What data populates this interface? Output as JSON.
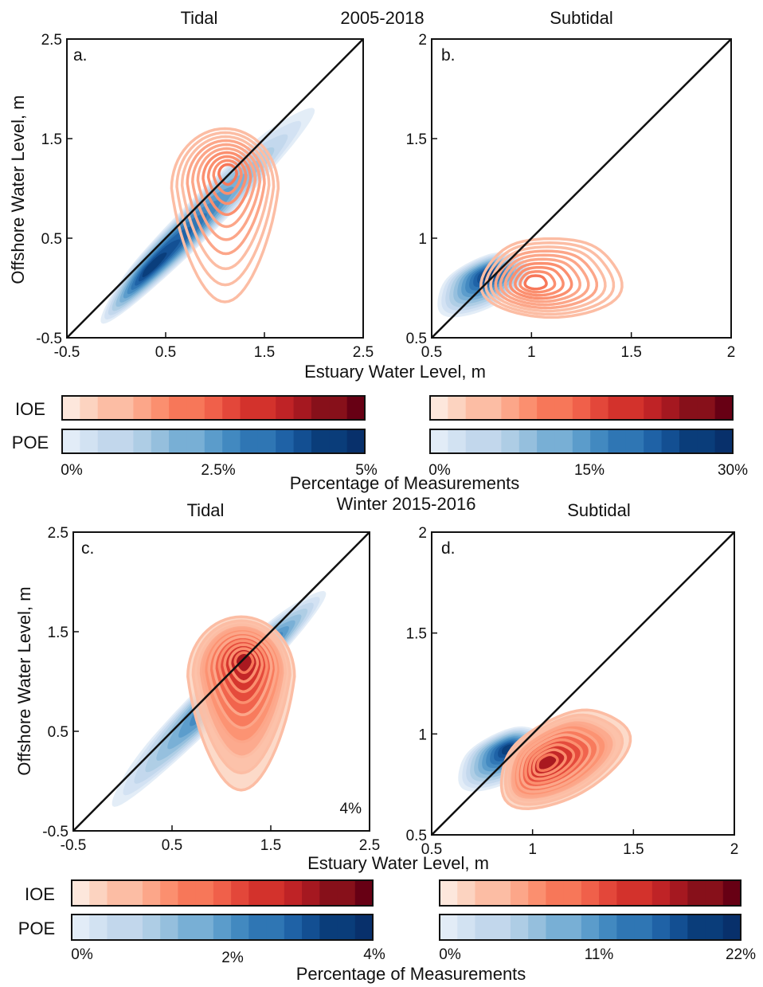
{
  "figure": {
    "top_period": "2005-2018",
    "bottom_period": "Winter 2015-2016"
  },
  "chart_data": [
    {
      "panel": "a.",
      "type": "contour",
      "title": "Tidal",
      "xlabel": "Estuary Water Level, m",
      "ylabel": "Offshore Water Level, m",
      "xlim": [
        -0.5,
        2.5
      ],
      "ylim": [
        -0.5,
        2.5
      ],
      "xticks": [
        "-0.5",
        "0.5",
        "1.5",
        "2.5"
      ],
      "yticks": [
        "-0.5",
        "0.5",
        "1.5",
        "2.5"
      ],
      "one_to_one_line": true,
      "series": [
        {
          "name": "POE",
          "fill": "filled",
          "center": [
            0.9,
            0.75
          ],
          "spread_along": 1.55,
          "spread_across": 0.12,
          "peak": [
            0.45,
            0.45
          ]
        },
        {
          "name": "IOE",
          "fill": "lines",
          "center": [
            1.1,
            1.0
          ],
          "spread_x": 0.45,
          "spread_y": 0.85
        }
      ]
    },
    {
      "panel": "b.",
      "type": "contour",
      "title": "Subtidal",
      "xlim": [
        0.5,
        2
      ],
      "ylim": [
        0.5,
        2
      ],
      "xticks": [
        "0.5",
        "1",
        "1.5",
        "2"
      ],
      "yticks": [
        "0.5",
        "1",
        "1.5",
        "2"
      ],
      "one_to_one_line": true,
      "series": [
        {
          "name": "POE",
          "fill": "filled",
          "center": [
            0.75,
            0.77
          ],
          "peak": [
            0.78,
            0.82
          ]
        },
        {
          "name": "IOE",
          "fill": "lines",
          "center": [
            1.1,
            0.8
          ],
          "spread_x": 0.4,
          "spread_y": 0.2
        }
      ]
    },
    {
      "panel": "c.",
      "type": "contour",
      "title": "Tidal",
      "xlabel": "Estuary Water Level, m",
      "ylabel": "Offshore Water Level, m",
      "xlim": [
        -0.5,
        2.5
      ],
      "ylim": [
        -0.5,
        2.5
      ],
      "xticks": [
        "-0.5",
        "0.5",
        "1.5",
        "2.5"
      ],
      "yticks": [
        "-0.5",
        "0.5",
        "1.5",
        "2.5"
      ],
      "one_to_one_line": true,
      "annotation": "4%",
      "series": [
        {
          "name": "POE",
          "fill": "filled",
          "center": [
            0.95,
            0.85
          ],
          "peak": [
            1.3,
            1.25
          ]
        },
        {
          "name": "IOE",
          "fill": "filled+lines",
          "center": [
            1.2,
            1.05
          ],
          "peak": [
            1.15,
            1.1
          ]
        }
      ]
    },
    {
      "panel": "d.",
      "type": "contour",
      "title": "Subtidal",
      "xlim": [
        0.5,
        2
      ],
      "ylim": [
        0.5,
        2
      ],
      "xticks": [
        "0.5",
        "1",
        "1.5",
        "2"
      ],
      "yticks": [
        "0.5",
        "1",
        "1.5",
        "2"
      ],
      "one_to_one_line": true,
      "series": [
        {
          "name": "POE",
          "fill": "filled",
          "center": [
            0.85,
            0.88
          ],
          "peak": [
            0.8,
            0.8
          ]
        },
        {
          "name": "IOE",
          "fill": "filled+lines",
          "center": [
            1.15,
            0.88
          ],
          "peak": [
            1.12,
            0.8
          ]
        }
      ]
    }
  ],
  "colorbars": [
    {
      "rows": [
        "IOE",
        "POE"
      ],
      "ticks": [
        "0%",
        "2.5%",
        "5%"
      ],
      "label": "Percentage of Measurements"
    },
    {
      "rows": [
        "IOE",
        "POE"
      ],
      "ticks": [
        "0%",
        "15%",
        "30%"
      ]
    },
    {
      "rows": [
        "IOE",
        "POE"
      ],
      "ticks": [
        "0%",
        "2%",
        "4%"
      ],
      "label": "Percentage of Measurements"
    },
    {
      "rows": [
        "IOE",
        "POE"
      ],
      "ticks": [
        "0%",
        "11%",
        "22%"
      ]
    }
  ],
  "colors": {
    "ioe": [
      "#fde7dc",
      "#fcd3c0",
      "#fcbda4",
      "#fca689",
      "#fb8f6f",
      "#f77759",
      "#f0604a",
      "#e3473a",
      "#d3322c",
      "#bf2326",
      "#a51820",
      "#87101a",
      "#670014"
    ],
    "poe": [
      "#e2ecf7",
      "#d2e2f2",
      "#c2d7ec",
      "#aecde5",
      "#95bfdd",
      "#78afd5",
      "#5b9ccb",
      "#4289c0",
      "#2f76b4",
      "#1f62a6",
      "#134f92",
      "#0a3d7a",
      "#08306b"
    ],
    "axis": "#111111"
  }
}
